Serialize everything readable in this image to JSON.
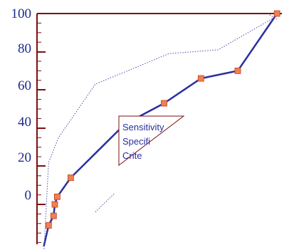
{
  "chart_data": {
    "type": "line",
    "title": "",
    "xlabel": "",
    "ylabel": "",
    "y_tick_labels": [
      "100",
      "80",
      "60",
      "40",
      "20",
      "0"
    ],
    "annotation": {
      "lines": [
        "Sensitivity",
        "Specifi",
        "Crite"
      ]
    },
    "series": [
      {
        "style": "solid",
        "markers": "square",
        "points": [
          {
            "x": 0.01,
            "y": -22
          },
          {
            "x": 0.03,
            "y": -11
          },
          {
            "x": 0.05,
            "y": -6
          },
          {
            "x": 0.055,
            "y": 0
          },
          {
            "x": 0.065,
            "y": 4
          },
          {
            "x": 0.12,
            "y": 14
          },
          {
            "x": 0.34,
            "y": 42
          },
          {
            "x": 0.5,
            "y": 53
          },
          {
            "x": 0.65,
            "y": 66
          },
          {
            "x": 0.8,
            "y": 70
          },
          {
            "x": 0.96,
            "y": 100
          }
        ]
      },
      {
        "style": "dotted",
        "points": [
          {
            "x": 0.01,
            "y": -26
          },
          {
            "x": 0.03,
            "y": 22
          },
          {
            "x": 0.07,
            "y": 35
          },
          {
            "x": 0.22,
            "y": 63
          },
          {
            "x": 0.52,
            "y": 79
          },
          {
            "x": 0.72,
            "y": 81
          },
          {
            "x": 0.95,
            "y": 98
          }
        ]
      },
      {
        "style": "dotted",
        "points": [
          {
            "x": 0.22,
            "y": -4
          },
          {
            "x": 0.3,
            "y": 6
          }
        ]
      },
      {
        "style": "dotted",
        "points": [
          {
            "x": 0.96,
            "y": 97
          },
          {
            "x": 0.92,
            "y": 100
          }
        ]
      }
    ],
    "colors": {
      "axis": "#7a1010",
      "solid_line": "#2a2f9e",
      "dotted_line": "#4a50a8",
      "marker_fill": "#f08050",
      "marker_stroke": "#c04020",
      "tick_text": "#1e2a8c",
      "annotation_text": "#2a2f9e",
      "annotation_border": "#7a1010"
    }
  }
}
